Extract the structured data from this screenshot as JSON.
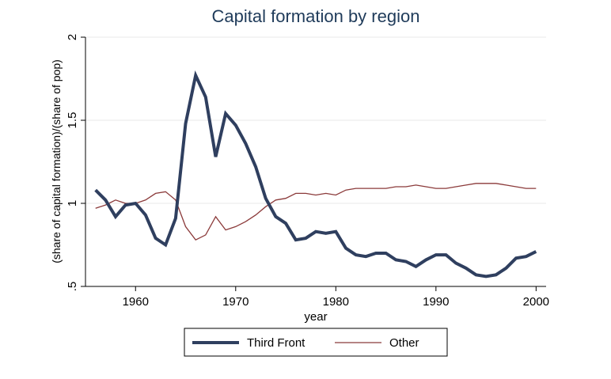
{
  "chart_data": {
    "type": "line",
    "title": "Capital formation by region",
    "xlabel": "year",
    "ylabel": "(share of capital formation)/(share of pop)",
    "xlim": [
      1955,
      2001
    ],
    "ylim": [
      0.5,
      2
    ],
    "x_ticks": [
      1960,
      1970,
      1980,
      1990,
      2000
    ],
    "x_tick_labels": [
      "1960",
      "1970",
      "1980",
      "1990",
      "2000"
    ],
    "y_ticks": [
      0.5,
      1,
      1.5,
      2
    ],
    "y_tick_labels": [
      ".5",
      "1",
      "1.5",
      "2"
    ],
    "grid": true,
    "legend_position": "bottom",
    "x": [
      1956,
      1957,
      1958,
      1959,
      1960,
      1961,
      1962,
      1963,
      1964,
      1965,
      1966,
      1967,
      1968,
      1969,
      1970,
      1971,
      1972,
      1973,
      1974,
      1975,
      1976,
      1977,
      1978,
      1979,
      1980,
      1981,
      1982,
      1983,
      1984,
      1985,
      1986,
      1987,
      1988,
      1989,
      1990,
      1991,
      1992,
      1993,
      1994,
      1995,
      1996,
      1997,
      1998,
      1999,
      2000
    ],
    "series": [
      {
        "name": "Third Front",
        "color": "#2f3f5f",
        "line_style": "thick",
        "values": [
          1.08,
          1.02,
          0.92,
          0.99,
          1.0,
          0.93,
          0.79,
          0.75,
          0.91,
          1.48,
          1.77,
          1.64,
          1.28,
          1.54,
          1.47,
          1.36,
          1.22,
          1.03,
          0.92,
          0.88,
          0.78,
          0.79,
          0.83,
          0.82,
          0.83,
          0.73,
          0.69,
          0.68,
          0.7,
          0.7,
          0.66,
          0.65,
          0.62,
          0.66,
          0.69,
          0.69,
          0.64,
          0.61,
          0.57,
          0.56,
          0.57,
          0.61,
          0.67,
          0.68,
          0.71
        ]
      },
      {
        "name": "Other",
        "color": "#8b3a3a",
        "line_style": "thin",
        "values": [
          0.97,
          0.99,
          1.02,
          1.0,
          1.0,
          1.02,
          1.06,
          1.07,
          1.02,
          0.86,
          0.78,
          0.81,
          0.92,
          0.84,
          0.86,
          0.89,
          0.93,
          0.98,
          1.02,
          1.03,
          1.06,
          1.06,
          1.05,
          1.06,
          1.05,
          1.08,
          1.09,
          1.09,
          1.09,
          1.09,
          1.1,
          1.1,
          1.11,
          1.1,
          1.09,
          1.09,
          1.1,
          1.11,
          1.12,
          1.12,
          1.12,
          1.11,
          1.1,
          1.09,
          1.09
        ]
      }
    ]
  }
}
